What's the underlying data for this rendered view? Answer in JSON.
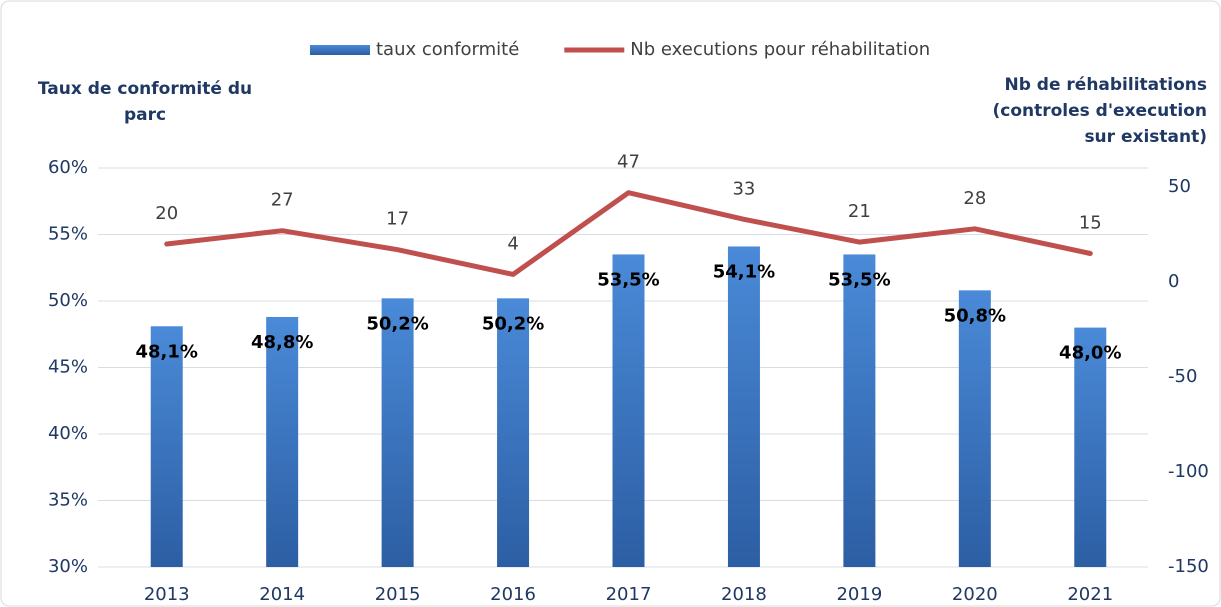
{
  "chart_data": {
    "type": "bar",
    "categories": [
      "2013",
      "2014",
      "2015",
      "2016",
      "2017",
      "2018",
      "2019",
      "2020",
      "2021"
    ],
    "series": [
      {
        "name": "taux conformité",
        "type": "bar",
        "color": "#3a78c4",
        "values": [
          48.1,
          48.8,
          50.2,
          50.2,
          53.5,
          54.1,
          53.5,
          50.8,
          48.0
        ],
        "value_labels": [
          "48,1%",
          "48,8%",
          "50,2%",
          "50,2%",
          "53,5%",
          "54,1%",
          "53,5%",
          "50,8%",
          "48,0%"
        ]
      },
      {
        "name": "Nb executions pour réhabilitation",
        "type": "line",
        "color": "#c0504d",
        "axis": "y2",
        "values": [
          20,
          27,
          17,
          4,
          47,
          33,
          21,
          28,
          15
        ]
      }
    ],
    "y_label": "Taux de conformité du parc",
    "y2_label": "Nb de réhabilitations (controles d'execution sur existant)",
    "ylim": [
      30,
      60
    ],
    "yticks": [
      {
        "value": 30,
        "label": "30%"
      },
      {
        "value": 35,
        "label": "35%"
      },
      {
        "value": 40,
        "label": "40%"
      },
      {
        "value": 45,
        "label": "45%"
      },
      {
        "value": 50,
        "label": "50%"
      },
      {
        "value": 55,
        "label": "55%"
      },
      {
        "value": 60,
        "label": "60%"
      }
    ],
    "y2lim": [
      -150,
      60
    ],
    "y2ticks": [
      -150,
      -100,
      -50,
      0,
      50
    ],
    "grid": true,
    "legend": "top"
  }
}
